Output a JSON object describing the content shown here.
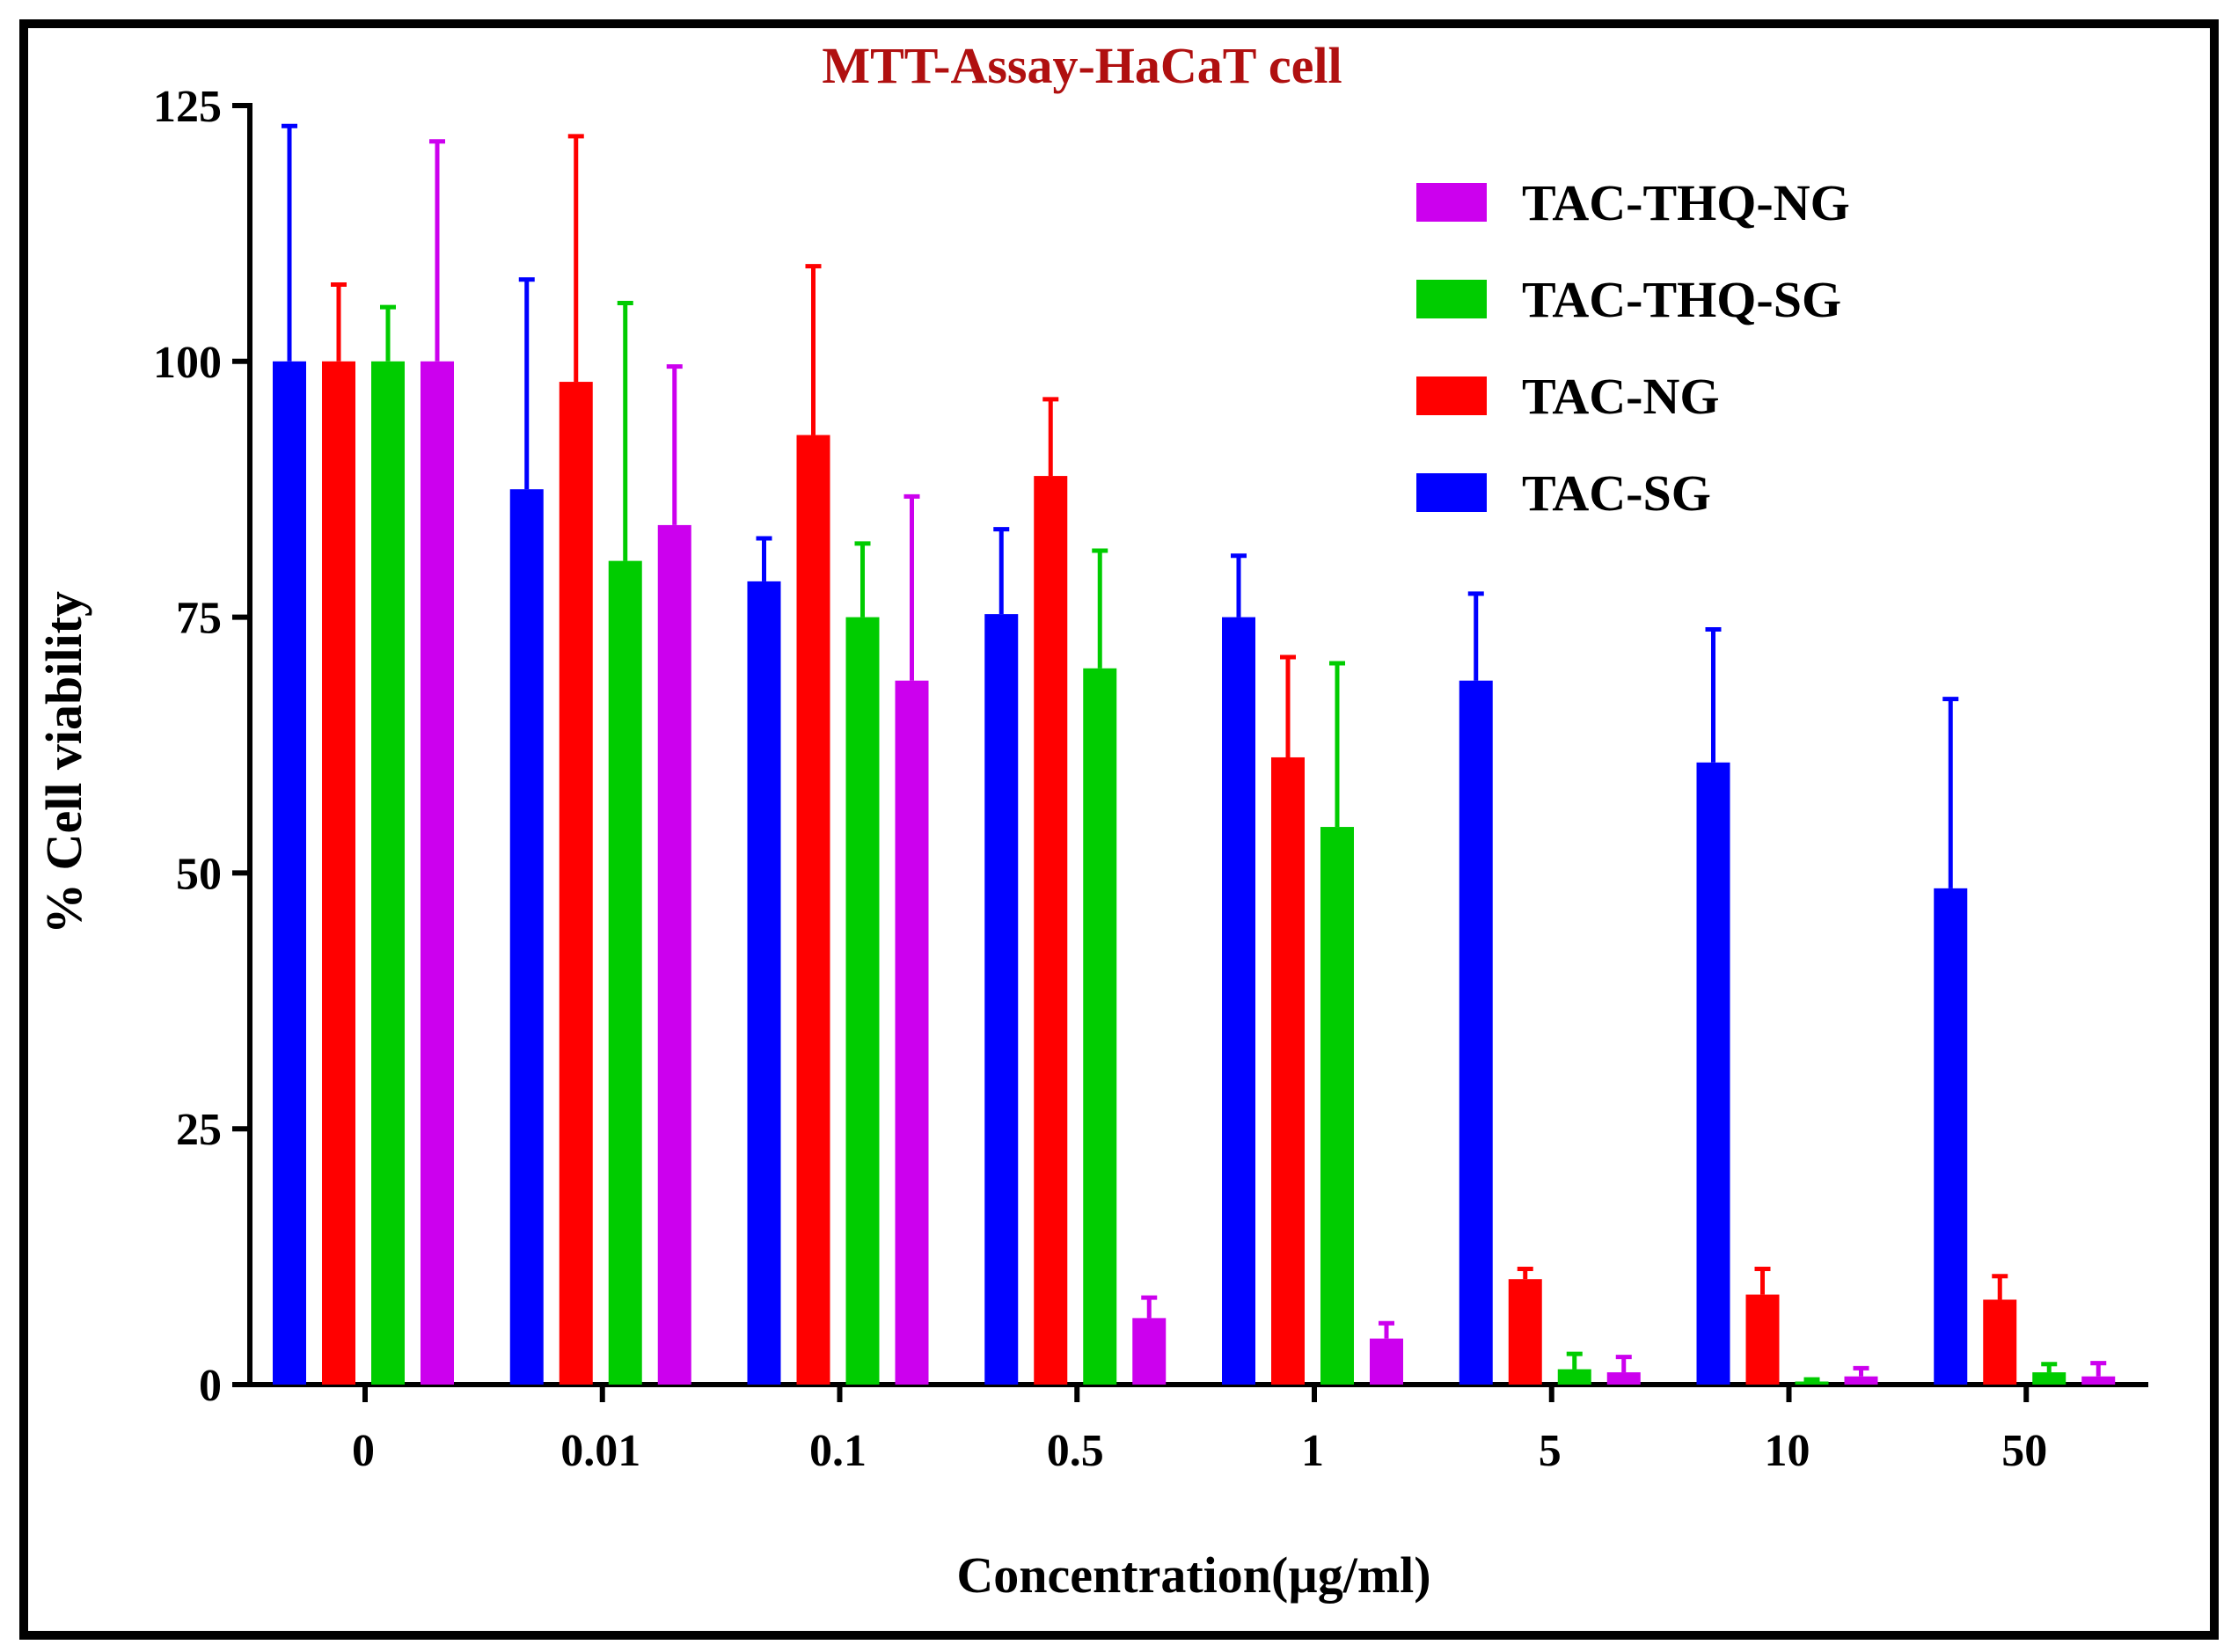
{
  "chart_data": {
    "type": "bar",
    "title": "MTT-Assay-HaCaT cell",
    "xlabel": "Concentration(µg/ml)",
    "ylabel": "% Cell viability",
    "ylim": [
      0,
      125
    ],
    "yticks": [
      0,
      25,
      50,
      75,
      100,
      125
    ],
    "categories": [
      "0",
      "0.01",
      "0.1",
      "0.5",
      "1",
      "5",
      "10",
      "50"
    ],
    "series": [
      {
        "name": "TAC-SG",
        "color": "#0000ff",
        "values": [
          100,
          87.5,
          78.5,
          75.3,
          75,
          68.8,
          60.8,
          48.5
        ],
        "errors": [
          23,
          20.5,
          4.2,
          8.3,
          6,
          8.5,
          13,
          18.5
        ]
      },
      {
        "name": "TAC-NG",
        "color": "#ff0000",
        "values": [
          100,
          98,
          92.8,
          88.8,
          61.3,
          10.3,
          8.8,
          8.3
        ],
        "errors": [
          7.5,
          24,
          16.5,
          7.5,
          9.8,
          1,
          2.5,
          2.3
        ]
      },
      {
        "name": "TAC-THQ-SG",
        "color": "#00cc00",
        "values": [
          100,
          80.5,
          75,
          70,
          54.5,
          1.5,
          0.3,
          1.2
        ],
        "errors": [
          5.3,
          25.2,
          7.2,
          11.5,
          16,
          1.5,
          0.2,
          0.8
        ]
      },
      {
        "name": "TAC-THQ-NG",
        "color": "#cc00ee",
        "values": [
          100,
          84,
          68.8,
          6.5,
          4.5,
          1.2,
          0.8,
          0.8
        ],
        "errors": [
          21.5,
          15.5,
          18,
          2,
          1.5,
          1.5,
          0.8,
          1.3
        ]
      }
    ],
    "legend_order": [
      "TAC-THQ-NG",
      "TAC-THQ-SG",
      "TAC-NG",
      "TAC-SG"
    ],
    "legend_position": "top-right",
    "title_color": "#b01010",
    "axis_color": "#000000"
  }
}
